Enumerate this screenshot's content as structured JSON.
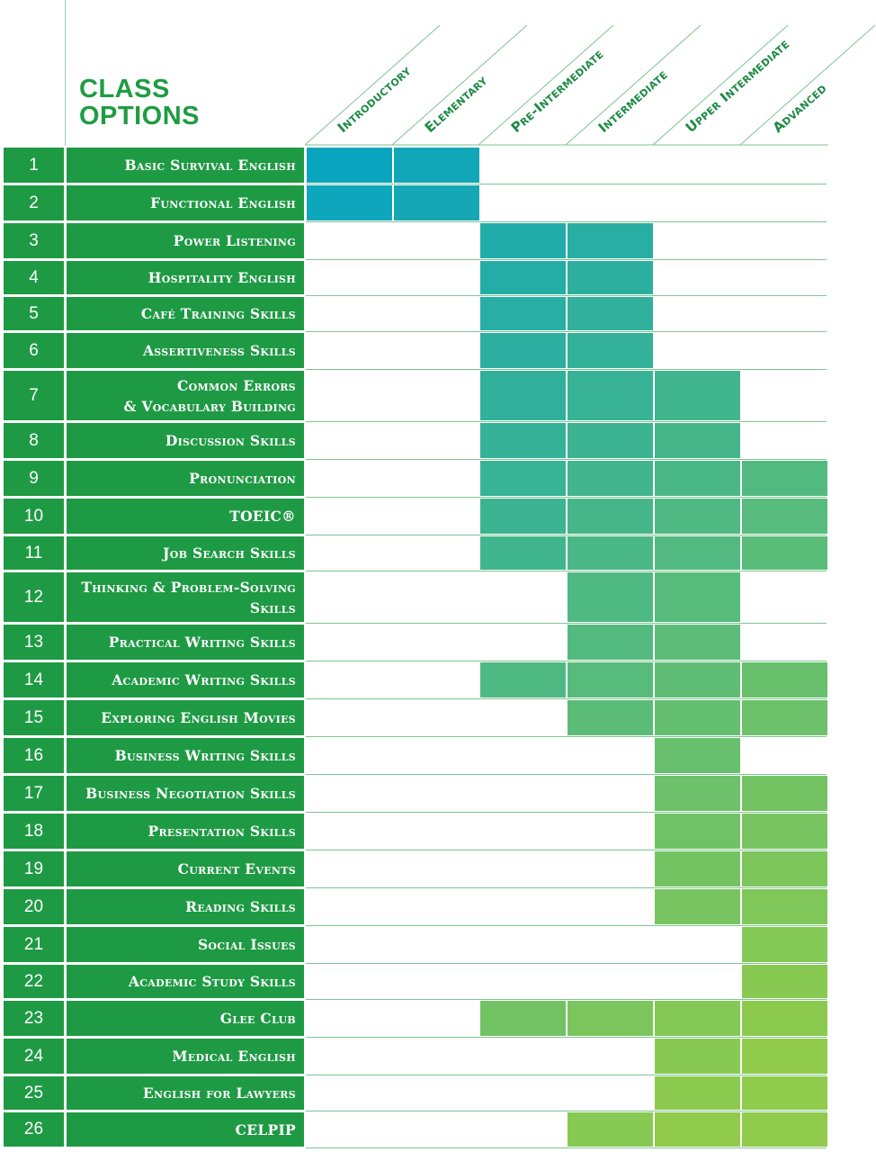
{
  "title_lines": [
    "CLASS",
    "OPTIONS"
  ],
  "levels": [
    "Introductory",
    "Elementary",
    "Pre-Intermediate",
    "Intermediate",
    "Upper Intermediate",
    "Advanced"
  ],
  "rows": [
    {
      "num": "1",
      "name": [
        "Basic Survival English"
      ],
      "levels": [
        0,
        1
      ]
    },
    {
      "num": "2",
      "name": [
        "Functional English"
      ],
      "levels": [
        0,
        1
      ]
    },
    {
      "num": "3",
      "name": [
        "Power Listening"
      ],
      "levels": [
        2,
        3
      ]
    },
    {
      "num": "4",
      "name": [
        "Hospitality English"
      ],
      "levels": [
        2,
        3
      ]
    },
    {
      "num": "5",
      "name": [
        "Café Training Skills"
      ],
      "levels": [
        2,
        3
      ]
    },
    {
      "num": "6",
      "name": [
        "Assertiveness Skills"
      ],
      "levels": [
        2,
        3
      ]
    },
    {
      "num": "7",
      "name": [
        "Common Errors",
        "& Vocabulary Building"
      ],
      "levels": [
        2,
        3,
        4
      ]
    },
    {
      "num": "8",
      "name": [
        "Discussion Skills"
      ],
      "levels": [
        2,
        3,
        4
      ]
    },
    {
      "num": "9",
      "name": [
        "Pronunciation"
      ],
      "levels": [
        2,
        3,
        4,
        5
      ]
    },
    {
      "num": "10",
      "name": [
        "TOEIC®"
      ],
      "levels": [
        2,
        3,
        4,
        5
      ]
    },
    {
      "num": "11",
      "name": [
        "Job Search Skills"
      ],
      "levels": [
        2,
        3,
        4,
        5
      ]
    },
    {
      "num": "12",
      "name": [
        "Thinking & Problem-Solving",
        "Skills"
      ],
      "levels": [
        3,
        4
      ]
    },
    {
      "num": "13",
      "name": [
        "Practical Writing Skills"
      ],
      "levels": [
        3,
        4
      ]
    },
    {
      "num": "14",
      "name": [
        "Academic Writing Skills"
      ],
      "levels": [
        2,
        3,
        4,
        5
      ]
    },
    {
      "num": "15",
      "name": [
        "Exploring English Movies"
      ],
      "levels": [
        3,
        4,
        5
      ]
    },
    {
      "num": "16",
      "name": [
        "Business Writing Skills"
      ],
      "levels": [
        4
      ]
    },
    {
      "num": "17",
      "name": [
        "Business Negotiation Skills"
      ],
      "levels": [
        4,
        5
      ]
    },
    {
      "num": "18",
      "name": [
        "Presentation Skills"
      ],
      "levels": [
        4,
        5
      ]
    },
    {
      "num": "19",
      "name": [
        "Current Events"
      ],
      "levels": [
        4,
        5
      ]
    },
    {
      "num": "20",
      "name": [
        "Reading Skills"
      ],
      "levels": [
        4,
        5
      ]
    },
    {
      "num": "21",
      "name": [
        "Social Issues"
      ],
      "levels": [
        5
      ]
    },
    {
      "num": "22",
      "name": [
        "Academic Study Skills"
      ],
      "levels": [
        5
      ]
    },
    {
      "num": "23",
      "name": [
        "Glee  Club"
      ],
      "levels": [
        2,
        3,
        4,
        5
      ]
    },
    {
      "num": "24",
      "name": [
        "Medical English"
      ],
      "levels": [
        4,
        5
      ]
    },
    {
      "num": "25",
      "name": [
        "English for Lawyers"
      ],
      "levels": [
        4,
        5
      ]
    },
    {
      "num": "26",
      "name": [
        "CELPIP"
      ],
      "levels": [
        3,
        4,
        5
      ]
    }
  ],
  "colors": {
    "label_green": "#1f9a44",
    "title_green": "#1f9c42",
    "gradient_start": "#03a3c4",
    "gradient_mid": "#3ab394",
    "gradient_end": "#90cb4c"
  }
}
